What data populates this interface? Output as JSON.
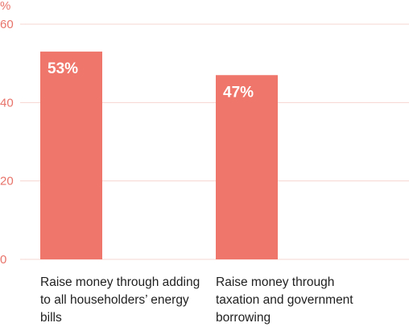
{
  "chart_data": {
    "type": "bar",
    "unit_label": "%",
    "categories": [
      "Raise money through adding to all householders’ energy bills",
      "Raise money through taxation and government borrowing"
    ],
    "values": [
      53,
      47
    ],
    "data_labels": [
      "53%",
      "47%"
    ],
    "ylim": [
      0,
      60
    ],
    "yticks": [
      0,
      20,
      40,
      60
    ],
    "ytick_labels": [
      "0",
      "20",
      "40",
      "60"
    ],
    "grid": true,
    "bar_color": "#ef766a",
    "grid_color": "#f6d5d1",
    "axis_text_color": "#e8736a"
  }
}
